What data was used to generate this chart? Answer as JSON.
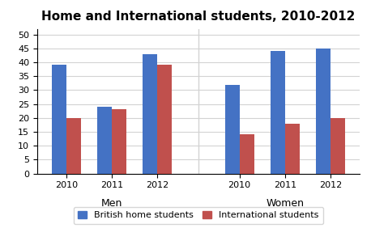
{
  "title": "Home and International students, 2010-2012",
  "years": [
    "2010",
    "2011",
    "2012"
  ],
  "british_home": {
    "Men": [
      39,
      24,
      43
    ],
    "Women": [
      32,
      44,
      45
    ]
  },
  "international": {
    "Men": [
      20,
      23,
      39
    ],
    "Women": [
      14,
      18,
      20
    ]
  },
  "bar_color_british": "#4472C4",
  "bar_color_international": "#C0504D",
  "ylim": [
    0,
    52
  ],
  "yticks": [
    0,
    5,
    10,
    15,
    20,
    25,
    30,
    35,
    40,
    45,
    50
  ],
  "legend_labels": [
    "British home students",
    "International students"
  ],
  "bar_width": 0.32,
  "title_fontsize": 11,
  "tick_fontsize": 8,
  "group_label_fontsize": 9,
  "legend_fontsize": 8
}
